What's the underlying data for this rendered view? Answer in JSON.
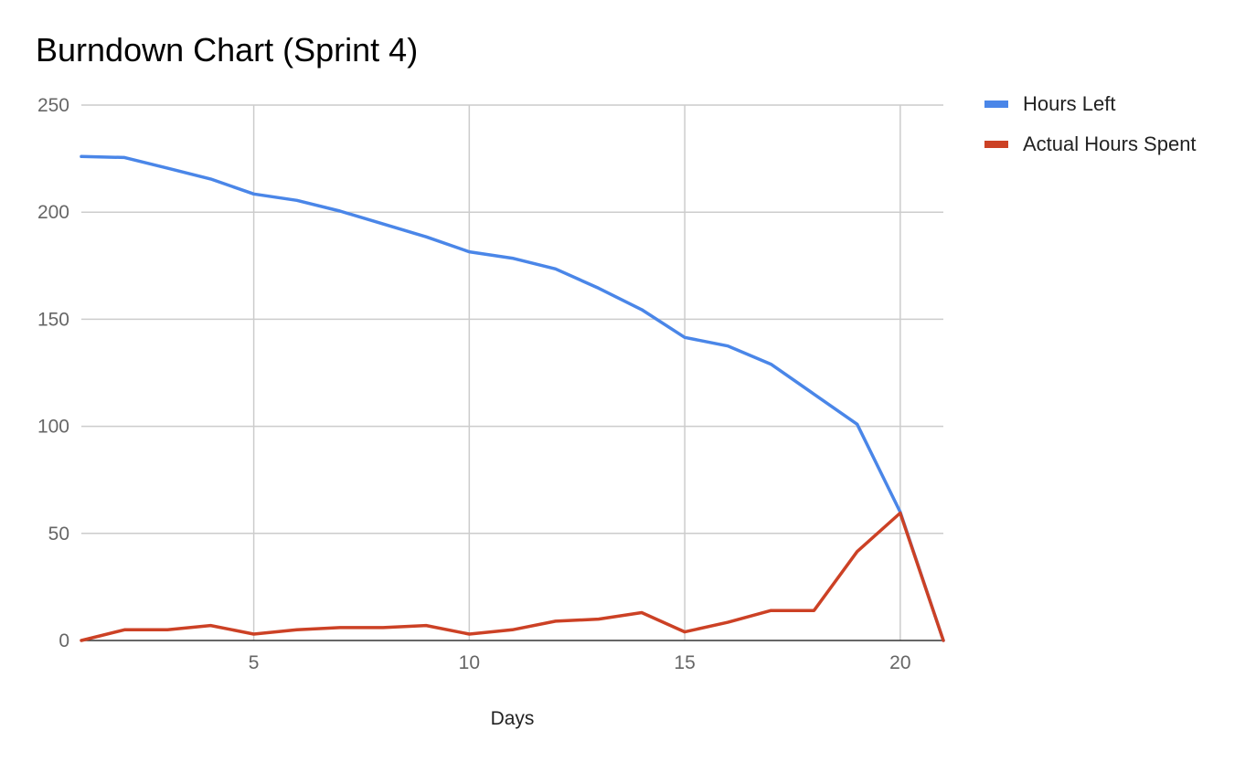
{
  "chart_data": {
    "type": "line",
    "title": "Burndown Chart (Sprint 4)",
    "xlabel": "Days",
    "ylabel": "",
    "xlim": [
      1,
      21
    ],
    "ylim": [
      0,
      250
    ],
    "x_ticks": [
      5,
      10,
      15,
      20
    ],
    "y_ticks": [
      0,
      50,
      100,
      150,
      200,
      250
    ],
    "grid": true,
    "legend_position": "right",
    "x": [
      1,
      2,
      3,
      4,
      5,
      6,
      7,
      8,
      9,
      10,
      11,
      12,
      13,
      14,
      15,
      16,
      17,
      18,
      19,
      20,
      21
    ],
    "series": [
      {
        "name": "Hours Left",
        "color": "#4a86e8",
        "values": [
          226,
          225.5,
          220.5,
          215.5,
          208.5,
          205.5,
          200.5,
          194.5,
          188.5,
          181.5,
          178.5,
          173.5,
          164.5,
          154.5,
          141.5,
          137.5,
          129,
          115,
          101,
          60,
          0
        ]
      },
      {
        "name": "Actual Hours Spent",
        "color": "#cc4125",
        "values": [
          0,
          5,
          5,
          7,
          3,
          5,
          6,
          6,
          7,
          3,
          5,
          9,
          10,
          13,
          4,
          8.5,
          14,
          14,
          41.5,
          59.5,
          0
        ]
      }
    ]
  }
}
